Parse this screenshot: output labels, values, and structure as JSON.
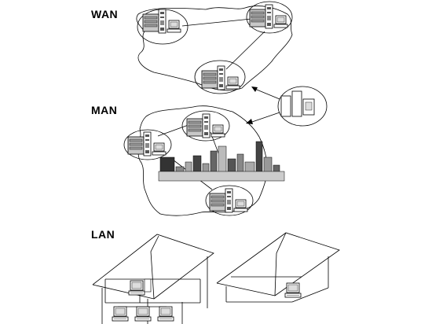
{
  "labels": {
    "wan": "WAN",
    "man": "MAN",
    "lan": "LAN"
  },
  "icons": {
    "server": "server-tower-icon",
    "terminal": "computer-terminal-icon",
    "city": "city-skyline-icon",
    "house": "house-outline-icon"
  }
}
